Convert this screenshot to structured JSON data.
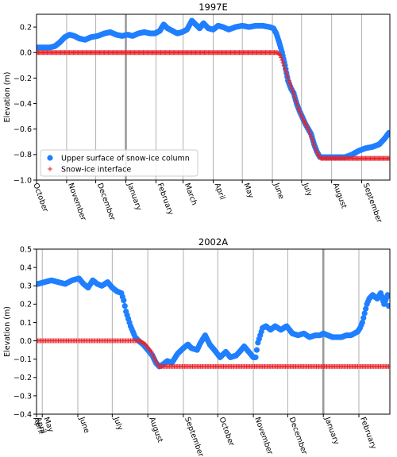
{
  "colors": {
    "surface": "#1f7fff",
    "interface": "#e8232a",
    "month_line": "#b0b0b0",
    "year_line": "#9a9a9a"
  },
  "chart_data": [
    {
      "type": "scatter",
      "title": "1997E",
      "ylabel": "Elevation (m)",
      "ylim": [
        -1.0,
        0.3
      ],
      "yticks": [
        -1.0,
        -0.8,
        -0.6,
        -0.4,
        -0.2,
        0.0,
        0.2
      ],
      "ytick_labels": [
        "−1.0",
        "−0.8",
        "−0.6",
        "−0.4",
        "−0.2",
        "0.0",
        "0.2"
      ],
      "x_start": "1997-10-01",
      "x_end": "1998-09-30",
      "month_labels": [
        "October",
        "November",
        "December",
        "January",
        "February",
        "March",
        "April",
        "May",
        "June",
        "July",
        "August",
        "September"
      ],
      "month_starts": [
        "1997-10-01",
        "1997-11-01",
        "1997-12-01",
        "1998-01-01",
        "1998-02-01",
        "1998-03-01",
        "1998-04-01",
        "1998-05-01",
        "1998-06-01",
        "1998-07-01",
        "1998-08-01",
        "1998-09-01"
      ],
      "year_boundary": "1998-01-01",
      "legend": {
        "placement": "lower-left",
        "entries": [
          "Upper surface of snow-ice column",
          "Snow-ice interface"
        ]
      },
      "series": [
        {
          "name": "Upper surface of snow-ice column",
          "marker": "circle",
          "points": [
            [
              "1997-10-01",
              0.04
            ],
            [
              "1997-10-15",
              0.04
            ],
            [
              "1997-10-20",
              0.05
            ],
            [
              "1997-10-25",
              0.08
            ],
            [
              "1997-10-30",
              0.12
            ],
            [
              "1997-11-04",
              0.14
            ],
            [
              "1997-11-09",
              0.13
            ],
            [
              "1997-11-14",
              0.11
            ],
            [
              "1997-11-20",
              0.1
            ],
            [
              "1997-11-26",
              0.12
            ],
            [
              "1997-12-03",
              0.13
            ],
            [
              "1997-12-10",
              0.15
            ],
            [
              "1997-12-16",
              0.16
            ],
            [
              "1997-12-22",
              0.14
            ],
            [
              "1997-12-28",
              0.13
            ],
            [
              "1998-01-03",
              0.14
            ],
            [
              "1998-01-08",
              0.13
            ],
            [
              "1998-01-14",
              0.15
            ],
            [
              "1998-01-20",
              0.16
            ],
            [
              "1998-01-26",
              0.15
            ],
            [
              "1998-01-31",
              0.15
            ],
            [
              "1998-02-05",
              0.17
            ],
            [
              "1998-02-09",
              0.22
            ],
            [
              "1998-02-13",
              0.19
            ],
            [
              "1998-02-18",
              0.17
            ],
            [
              "1998-02-23",
              0.15
            ],
            [
              "1998-02-28",
              0.16
            ],
            [
              "1998-03-05",
              0.18
            ],
            [
              "1998-03-10",
              0.25
            ],
            [
              "1998-03-14",
              0.22
            ],
            [
              "1998-03-18",
              0.19
            ],
            [
              "1998-03-22",
              0.23
            ],
            [
              "1998-03-27",
              0.19
            ],
            [
              "1998-04-01",
              0.18
            ],
            [
              "1998-04-06",
              0.21
            ],
            [
              "1998-04-11",
              0.2
            ],
            [
              "1998-04-17",
              0.18
            ],
            [
              "1998-04-24",
              0.2
            ],
            [
              "1998-05-01",
              0.21
            ],
            [
              "1998-05-08",
              0.2
            ],
            [
              "1998-05-15",
              0.21
            ],
            [
              "1998-05-22",
              0.21
            ],
            [
              "1998-05-29",
              0.2
            ],
            [
              "1998-06-02",
              0.19
            ],
            [
              "1998-06-05",
              0.15
            ],
            [
              "1998-06-08",
              0.08
            ],
            [
              "1998-06-11",
              0.0
            ],
            [
              "1998-06-14",
              -0.1
            ],
            [
              "1998-06-17",
              -0.22
            ],
            [
              "1998-06-20",
              -0.28
            ],
            [
              "1998-06-23",
              -0.32
            ],
            [
              "1998-06-26",
              -0.4
            ],
            [
              "1998-06-29",
              -0.46
            ],
            [
              "1998-07-02",
              -0.51
            ],
            [
              "1998-07-05",
              -0.56
            ],
            [
              "1998-07-08",
              -0.6
            ],
            [
              "1998-07-11",
              -0.64
            ],
            [
              "1998-07-14",
              -0.72
            ],
            [
              "1998-07-17",
              -0.78
            ],
            [
              "1998-07-20",
              -0.82
            ],
            [
              "1998-07-26",
              -0.82
            ],
            [
              "1998-08-01",
              -0.82
            ],
            [
              "1998-08-08",
              -0.82
            ],
            [
              "1998-08-15",
              -0.82
            ],
            [
              "1998-08-22",
              -0.8
            ],
            [
              "1998-08-29",
              -0.77
            ],
            [
              "1998-09-05",
              -0.75
            ],
            [
              "1998-09-12",
              -0.74
            ],
            [
              "1998-09-19",
              -0.72
            ],
            [
              "1998-09-24",
              -0.68
            ],
            [
              "1998-09-29",
              -0.63
            ]
          ]
        },
        {
          "name": "Snow-ice interface",
          "marker": "plus",
          "points": [
            [
              "1997-10-01",
              0.0
            ],
            [
              "1998-06-06",
              0.0
            ],
            [
              "1998-06-09",
              -0.02
            ],
            [
              "1998-06-12",
              -0.08
            ],
            [
              "1998-06-15",
              -0.15
            ],
            [
              "1998-06-18",
              -0.22
            ],
            [
              "1998-06-21",
              -0.28
            ],
            [
              "1998-06-24",
              -0.35
            ],
            [
              "1998-06-27",
              -0.42
            ],
            [
              "1998-06-30",
              -0.48
            ],
            [
              "1998-07-03",
              -0.53
            ],
            [
              "1998-07-06",
              -0.57
            ],
            [
              "1998-07-09",
              -0.62
            ],
            [
              "1998-07-12",
              -0.68
            ],
            [
              "1998-07-15",
              -0.75
            ],
            [
              "1998-07-18",
              -0.8
            ],
            [
              "1998-07-21",
              -0.83
            ],
            [
              "1998-09-30",
              -0.83
            ]
          ]
        }
      ]
    },
    {
      "type": "scatter",
      "title": "2002A",
      "ylabel": "Elevation (m)",
      "ylim": [
        -0.4,
        0.5
      ],
      "yticks": [
        -0.4,
        -0.3,
        -0.2,
        -0.1,
        0.0,
        0.1,
        0.2,
        0.3,
        0.4,
        0.5
      ],
      "ytick_labels": [
        "−0.4",
        "−0.3",
        "−0.2",
        "−0.1",
        "0.0",
        "0.1",
        "0.2",
        "0.3",
        "0.4",
        "0.5"
      ],
      "x_start": "2002-04-26",
      "x_end": "2003-02-28",
      "month_labels": [
        "April",
        "April",
        "May",
        "June",
        "July",
        "August",
        "September",
        "October",
        "November",
        "December",
        "January",
        "February"
      ],
      "month_starts": [
        "2002-04-26",
        "2002-04-26",
        "2002-05-01",
        "2002-06-01",
        "2002-07-01",
        "2002-08-01",
        "2002-09-01",
        "2002-10-01",
        "2002-11-01",
        "2002-12-01",
        "2003-01-01",
        "2003-02-01"
      ],
      "year_boundary": "2003-01-01",
      "series": [
        {
          "name": "Upper surface of snow-ice column",
          "marker": "circle",
          "points": [
            [
              "2002-04-27",
              0.31
            ],
            [
              "2002-05-03",
              0.32
            ],
            [
              "2002-05-09",
              0.33
            ],
            [
              "2002-05-15",
              0.32
            ],
            [
              "2002-05-21",
              0.31
            ],
            [
              "2002-05-27",
              0.33
            ],
            [
              "2002-06-02",
              0.34
            ],
            [
              "2002-06-06",
              0.31
            ],
            [
              "2002-06-10",
              0.29
            ],
            [
              "2002-06-14",
              0.33
            ],
            [
              "2002-06-18",
              0.31
            ],
            [
              "2002-06-22",
              0.3
            ],
            [
              "2002-06-27",
              0.32
            ],
            [
              "2002-07-01",
              0.29
            ],
            [
              "2002-07-05",
              0.27
            ],
            [
              "2002-07-09",
              0.26
            ],
            [
              "2002-07-11",
              0.22
            ],
            [
              "2002-07-13",
              0.16
            ],
            [
              "2002-07-15",
              0.12
            ],
            [
              "2002-07-17",
              0.08
            ],
            [
              "2002-07-19",
              0.05
            ],
            [
              "2002-07-21",
              0.02
            ],
            [
              "2002-07-24",
              0.0
            ],
            [
              "2002-07-28",
              -0.02
            ],
            [
              "2002-08-01",
              -0.05
            ],
            [
              "2002-08-05",
              -0.08
            ],
            [
              "2002-08-08",
              -0.12
            ],
            [
              "2002-08-11",
              -0.14
            ],
            [
              "2002-08-14",
              -0.13
            ],
            [
              "2002-08-18",
              -0.11
            ],
            [
              "2002-08-22",
              -0.12
            ],
            [
              "2002-08-27",
              -0.07
            ],
            [
              "2002-09-01",
              -0.04
            ],
            [
              "2002-09-05",
              -0.02
            ],
            [
              "2002-09-08",
              -0.04
            ],
            [
              "2002-09-13",
              -0.05
            ],
            [
              "2002-09-16",
              -0.01
            ],
            [
              "2002-09-20",
              0.03
            ],
            [
              "2002-09-24",
              -0.02
            ],
            [
              "2002-09-28",
              -0.05
            ],
            [
              "2002-10-03",
              -0.09
            ],
            [
              "2002-10-08",
              -0.06
            ],
            [
              "2002-10-12",
              -0.09
            ],
            [
              "2002-10-17",
              -0.08
            ],
            [
              "2002-10-20",
              -0.06
            ],
            [
              "2002-10-24",
              -0.03
            ],
            [
              "2002-10-28",
              -0.06
            ],
            [
              "2002-11-01",
              -0.09
            ],
            [
              "2002-11-03",
              -0.09
            ],
            [
              "2002-11-05",
              -0.01
            ],
            [
              "2002-11-07",
              0.03
            ],
            [
              "2002-11-09",
              0.07
            ],
            [
              "2002-11-12",
              0.08
            ],
            [
              "2002-11-16",
              0.06
            ],
            [
              "2002-11-20",
              0.08
            ],
            [
              "2002-11-25",
              0.06
            ],
            [
              "2002-11-30",
              0.08
            ],
            [
              "2002-12-05",
              0.04
            ],
            [
              "2002-12-10",
              0.03
            ],
            [
              "2002-12-15",
              0.04
            ],
            [
              "2002-12-20",
              0.02
            ],
            [
              "2002-12-25",
              0.03
            ],
            [
              "2002-12-29",
              0.03
            ],
            [
              "2003-01-01",
              0.04
            ],
            [
              "2003-01-05",
              0.03
            ],
            [
              "2003-01-09",
              0.02
            ],
            [
              "2003-01-13",
              0.02
            ],
            [
              "2003-01-17",
              0.02
            ],
            [
              "2003-01-21",
              0.03
            ],
            [
              "2003-01-25",
              0.03
            ],
            [
              "2003-01-28",
              0.04
            ],
            [
              "2003-01-31",
              0.05
            ],
            [
              "2003-02-02",
              0.07
            ],
            [
              "2003-02-04",
              0.1
            ],
            [
              "2003-02-06",
              0.15
            ],
            [
              "2003-02-08",
              0.2
            ],
            [
              "2003-02-10",
              0.23
            ],
            [
              "2003-02-13",
              0.25
            ],
            [
              "2003-02-17",
              0.23
            ],
            [
              "2003-02-20",
              0.26
            ],
            [
              "2003-02-23",
              0.2
            ],
            [
              "2003-02-26",
              0.25
            ],
            [
              "2003-02-27",
              0.19
            ]
          ]
        },
        {
          "name": "Snow-ice interface",
          "marker": "plus",
          "points": [
            [
              "2002-04-26",
              0.0
            ],
            [
              "2002-07-25",
              0.0
            ],
            [
              "2002-07-30",
              -0.02
            ],
            [
              "2002-08-04",
              -0.06
            ],
            [
              "2002-08-08",
              -0.11
            ],
            [
              "2002-08-11",
              -0.14
            ],
            [
              "2003-02-28",
              -0.14
            ]
          ]
        }
      ]
    }
  ]
}
